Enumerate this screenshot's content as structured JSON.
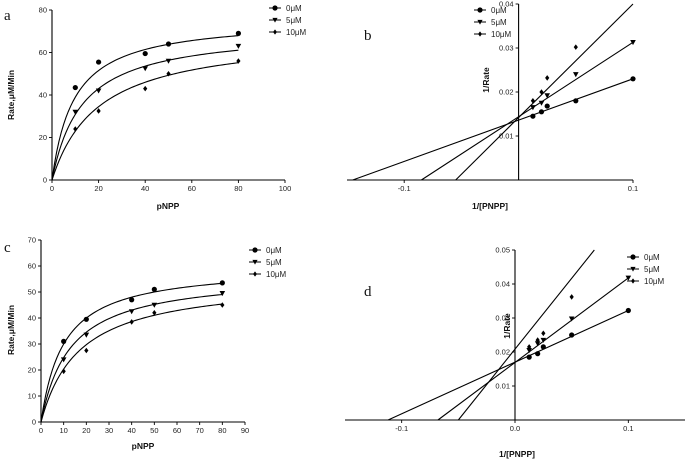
{
  "chart_data": [
    {
      "panel": "a",
      "type": "scatter",
      "xlabel": "pNPP",
      "ylabel": "Rate,μM/Min",
      "xlim": [
        0,
        100
      ],
      "ylim": [
        0,
        80
      ],
      "xticks": [
        0,
        20,
        40,
        60,
        80,
        100
      ],
      "yticks": [
        0,
        20,
        40,
        60,
        80
      ],
      "x_tick_labels": [
        "0",
        "20",
        "40",
        "60",
        "80",
        "100"
      ],
      "y_tick_labels": [
        "0",
        "20",
        "40",
        "60",
        "80"
      ],
      "legend_position": "top-right",
      "fit": "michaelis-menten",
      "series": [
        {
          "name": "0μM",
          "marker": "circle",
          "x": [
            10,
            20,
            40,
            50,
            80
          ],
          "y": [
            43.5,
            55.5,
            59.5,
            64,
            69
          ],
          "vmax": 76,
          "km": 9.5
        },
        {
          "name": "5μM",
          "marker": "triangle-down",
          "x": [
            10,
            20,
            40,
            50,
            80
          ],
          "y": [
            32,
            42,
            52.5,
            56,
            63
          ],
          "vmax": 71,
          "km": 13
        },
        {
          "name": "10μM",
          "marker": "diamond",
          "x": [
            10,
            20,
            40,
            50,
            80
          ],
          "y": [
            24,
            32.5,
            43,
            50,
            56
          ],
          "vmax": 69,
          "km": 20
        }
      ]
    },
    {
      "panel": "b",
      "type": "scatter",
      "xlabel": "1/[PNPP]",
      "ylabel": "1/Rate",
      "xlim": [
        -0.15,
        0.1
      ],
      "ylim": [
        0,
        0.04
      ],
      "xticks": [
        -0.1,
        0.1
      ],
      "yticks": [
        0.01,
        0.02,
        0.03,
        0.04
      ],
      "x_tick_labels": [
        "-0.1",
        "0.1"
      ],
      "y_tick_labels": [
        "0.01",
        "0.02",
        "0.03",
        "0.04"
      ],
      "legend_position": "top-right",
      "fit": "linear",
      "series": [
        {
          "name": "0μM",
          "marker": "circle",
          "x": [
            0.0125,
            0.02,
            0.025,
            0.05,
            0.1
          ],
          "y": [
            0.0145,
            0.0155,
            0.0168,
            0.018,
            0.023
          ],
          "line_x": [
            -0.145,
            0.1
          ],
          "line_y": [
            0.0,
            0.023
          ]
        },
        {
          "name": "5μM",
          "marker": "triangle-down",
          "x": [
            0.0125,
            0.02,
            0.025,
            0.05,
            0.1
          ],
          "y": [
            0.0165,
            0.0175,
            0.0192,
            0.024,
            0.0313
          ],
          "line_x": [
            -0.085,
            0.1
          ],
          "line_y": [
            0.0,
            0.0313
          ]
        },
        {
          "name": "10μM",
          "marker": "diamond",
          "x": [
            0.0125,
            0.02,
            0.025,
            0.05
          ],
          "y": [
            0.018,
            0.02,
            0.0232,
            0.0302
          ],
          "line_x": [
            -0.055,
            0.1
          ],
          "line_y": [
            0.0,
            0.04
          ]
        }
      ]
    },
    {
      "panel": "c",
      "type": "scatter",
      "xlabel": "pNPP",
      "ylabel": "Rate,μM/Min",
      "xlim": [
        0,
        90
      ],
      "ylim": [
        0,
        70
      ],
      "xticks": [
        0,
        10,
        20,
        30,
        40,
        50,
        60,
        70,
        80,
        90
      ],
      "yticks": [
        0,
        10,
        20,
        30,
        40,
        50,
        60,
        70
      ],
      "x_tick_labels": [
        "0",
        "10",
        "20",
        "30",
        "40",
        "50",
        "60",
        "70",
        "80",
        "90"
      ],
      "y_tick_labels": [
        "0",
        "10",
        "20",
        "30",
        "40",
        "50",
        "60",
        "70"
      ],
      "legend_position": "top-right",
      "fit": "michaelis-menten",
      "series": [
        {
          "name": "0μM",
          "marker": "circle",
          "x": [
            10,
            20,
            40,
            50,
            80
          ],
          "y": [
            31,
            39.5,
            47,
            51,
            53.5
          ],
          "vmax": 60,
          "km": 10
        },
        {
          "name": "5μM",
          "marker": "triangle-down",
          "x": [
            10,
            20,
            40,
            50,
            80
          ],
          "y": [
            24,
            33.5,
            42.5,
            45,
            49.5
          ],
          "vmax": 57,
          "km": 13
        },
        {
          "name": "10μM",
          "marker": "diamond",
          "x": [
            10,
            20,
            40,
            50,
            80
          ],
          "y": [
            19.5,
            27.5,
            38.5,
            42,
            45
          ],
          "vmax": 55,
          "km": 17
        }
      ]
    },
    {
      "panel": "d",
      "type": "scatter",
      "xlabel": "1/[PNPP]",
      "ylabel": "1/Rate",
      "xlim": [
        -0.15,
        0.15
      ],
      "ylim": [
        0,
        0.05
      ],
      "xticks": [
        -0.1,
        0.0,
        0.1
      ],
      "yticks": [
        0.01,
        0.02,
        0.03,
        0.04,
        0.05
      ],
      "x_tick_labels": [
        "-0.1",
        "0.0",
        "0.1"
      ],
      "y_tick_labels": [
        "0.01",
        "0.02",
        "0.03",
        "0.04",
        "0.05"
      ],
      "legend_position": "top-right",
      "fit": "linear",
      "series": [
        {
          "name": "0μM",
          "marker": "circle",
          "x": [
            0.0125,
            0.02,
            0.025,
            0.05,
            0.1
          ],
          "y": [
            0.0185,
            0.0195,
            0.0215,
            0.025,
            0.0322
          ],
          "line_x": [
            -0.112,
            0.1
          ],
          "line_y": [
            0.0,
            0.0322
          ]
        },
        {
          "name": "5μM",
          "marker": "triangle-down",
          "x": [
            0.0125,
            0.02,
            0.025,
            0.05,
            0.1
          ],
          "y": [
            0.0205,
            0.0225,
            0.0235,
            0.0298,
            0.0418
          ],
          "line_x": [
            -0.068,
            0.1
          ],
          "line_y": [
            0.0,
            0.0418
          ]
        },
        {
          "name": "10μM",
          "marker": "diamond",
          "x": [
            0.0125,
            0.02,
            0.025,
            0.05
          ],
          "y": [
            0.0215,
            0.0235,
            0.0255,
            0.0362
          ],
          "line_x": [
            -0.05,
            0.07
          ],
          "line_y": [
            0.0,
            0.05
          ]
        }
      ]
    }
  ]
}
